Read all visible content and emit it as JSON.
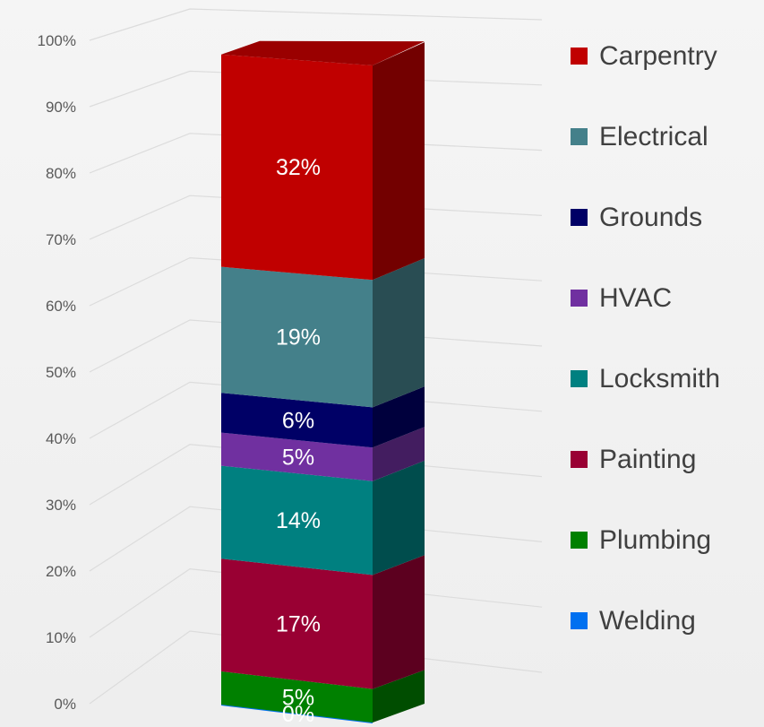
{
  "chart_data": {
    "type": "bar",
    "stacked": true,
    "three_d": true,
    "y_axis_ticks": [
      "0%",
      "10%",
      "20%",
      "30%",
      "40%",
      "50%",
      "60%",
      "70%",
      "80%",
      "90%",
      "100%"
    ],
    "ylim": [
      0,
      100
    ],
    "grid": true,
    "legend_position": "right",
    "series": [
      {
        "name": "Welding",
        "value": 0,
        "label": "0%",
        "color": "#0070f0"
      },
      {
        "name": "Plumbing",
        "value": 5,
        "label": "5%",
        "color": "#008000"
      },
      {
        "name": "Painting",
        "value": 17,
        "label": "17%",
        "color": "#990033"
      },
      {
        "name": "Locksmith",
        "value": 14,
        "label": "14%",
        "color": "#008080"
      },
      {
        "name": "HVAC",
        "value": 5,
        "label": "5%",
        "color": "#7030a0"
      },
      {
        "name": "Grounds",
        "value": 6,
        "label": "6%",
        "color": "#000066"
      },
      {
        "name": "Electrical",
        "value": 19,
        "label": "19%",
        "color": "#44808a"
      },
      {
        "name": "Carpentry",
        "value": 32,
        "label": "32%",
        "color": "#c00000"
      }
    ],
    "legend": [
      {
        "name": "Carpentry",
        "color": "#c00000"
      },
      {
        "name": "Electrical",
        "color": "#44808a"
      },
      {
        "name": "Grounds",
        "color": "#000066"
      },
      {
        "name": "HVAC",
        "color": "#7030a0"
      },
      {
        "name": "Locksmith",
        "color": "#008080"
      },
      {
        "name": "Painting",
        "color": "#990033"
      },
      {
        "name": "Plumbing",
        "color": "#008000"
      },
      {
        "name": "Welding",
        "color": "#0070f0"
      }
    ]
  }
}
